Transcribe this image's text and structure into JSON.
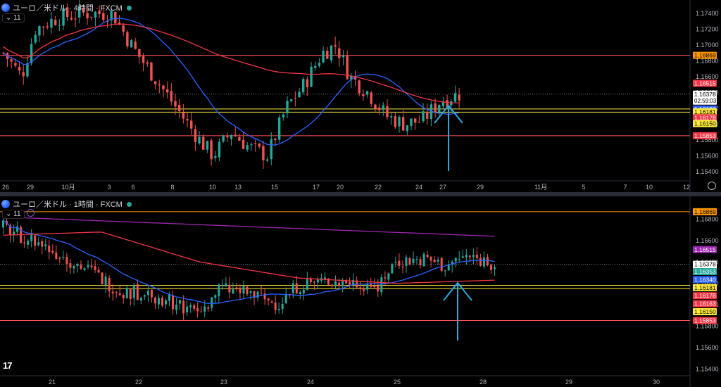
{
  "top": {
    "title": "ユーロ／米ドル · 4時間 · FXCM",
    "ind_toggle": "⌄ 11",
    "ymin": 1.153,
    "ymax": 1.1755,
    "yticks": [
      1.174,
      1.172,
      1.17,
      1.168,
      1.166,
      1.164,
      1.162,
      1.16,
      1.158,
      1.156,
      1.154
    ],
    "xticks": [
      "26",
      "29",
      "10月",
      "3",
      "6",
      "8",
      "10",
      "13",
      "15",
      "17",
      "20",
      "22",
      "24",
      "27",
      "29",
      "11月",
      "5",
      "7",
      "10",
      "12"
    ],
    "hlines": [
      {
        "value": 1.16869,
        "color": "#ff5252"
      },
      {
        "value": 1.1619,
        "color": "#ffeb3b"
      },
      {
        "value": 1.1615,
        "color": "#ffeb3b"
      },
      {
        "value": 1.15853,
        "color": "#ff5252"
      }
    ],
    "price_labels": [
      {
        "text": "1.16869",
        "value": 1.16869,
        "bg": "#ff9800",
        "fg": "#000000"
      },
      {
        "text": "1.16515",
        "value": 1.16515,
        "bg": "#f23645",
        "fg": "#ffffff"
      },
      {
        "text": "1.16378",
        "value": 1.16378,
        "bg": "#ffffff",
        "fg": "#000000",
        "sub": "02:59:03"
      },
      {
        "text": "1.16190",
        "value": 1.1619,
        "bg": "#2962ff",
        "fg": "#ffffff"
      },
      {
        "text": "1.16181",
        "value": 1.16155,
        "bg": "#ffeb3b",
        "fg": "#000000"
      },
      {
        "text": "1.16178",
        "value": 1.1608,
        "bg": "#f23645",
        "fg": "#ffffff"
      },
      {
        "text": "1.16150",
        "value": 1.16005,
        "bg": "#ffeb3b",
        "fg": "#000000"
      },
      {
        "text": "1.15853",
        "value": 1.15853,
        "bg": "#f23645",
        "fg": "#ffffff"
      }
    ]
  },
  "bottom": {
    "title": "ユーロ／米ドル · 1時間 · FXCM",
    "ind_toggle": "⌄ 11",
    "ymin": 1.1535,
    "ymax": 1.17,
    "yticks": [
      1.168,
      1.166,
      1.164,
      1.162,
      1.16,
      1.158,
      1.156,
      1.154
    ],
    "xticks": [
      "21",
      "22",
      "23",
      "24",
      "25",
      "28",
      "29",
      "30"
    ],
    "hlines": [
      {
        "value": 1.16869,
        "color": "#ff9800"
      },
      {
        "value": 1.16181,
        "color": "#ffeb3b"
      },
      {
        "value": 1.1615,
        "color": "#ffeb3b"
      },
      {
        "value": 1.15853,
        "color": "#ff5252"
      }
    ],
    "price_labels": [
      {
        "text": "1.16869",
        "value": 1.16869,
        "bg": "#ff9800",
        "fg": "#000000"
      },
      {
        "text": "1.16515",
        "value": 1.16515,
        "bg": "#9c27b0",
        "fg": "#ffffff"
      },
      {
        "text": "1.16378",
        "value": 1.16378,
        "bg": "#ffffff",
        "fg": "#000000",
        "sub": "59:03"
      },
      {
        "text": "1.16353",
        "value": 1.1631,
        "bg": "#26a69a",
        "fg": "#ffffff"
      },
      {
        "text": "1.16340",
        "value": 1.16235,
        "bg": "#2962ff",
        "fg": "#ffffff"
      },
      {
        "text": "1.16181",
        "value": 1.1616,
        "bg": "#ffeb3b",
        "fg": "#000000"
      },
      {
        "text": "1.16178",
        "value": 1.16085,
        "bg": "#f23645",
        "fg": "#ffffff"
      },
      {
        "text": "1.16163",
        "value": 1.1601,
        "bg": "#f23645",
        "fg": "#ffffff"
      },
      {
        "text": "1.16150",
        "value": 1.15935,
        "bg": "#ffeb3b",
        "fg": "#000000"
      },
      {
        "text": "1.15853",
        "value": 1.15853,
        "bg": "#f23645",
        "fg": "#ffffff"
      }
    ]
  },
  "colors": {
    "up": "#26a69a",
    "down": "#ef5350",
    "sma_fast": "#2962ff",
    "sma_slow": "#f23645",
    "sma_long": "#9c27b0",
    "arrow": "#29a8e0"
  },
  "brand": "17",
  "chart_data": [
    {
      "type": "line",
      "title": "ユーロ／米ドル · 4時間 · FXCM",
      "x": [
        "26",
        "29",
        "10月",
        "3",
        "6",
        "8",
        "10",
        "13",
        "15",
        "17",
        "20",
        "22",
        "24",
        "27"
      ],
      "series": [
        {
          "values": [
            1.17,
            1.1725,
            1.1735,
            1.174,
            1.1705,
            1.165,
            1.158,
            1.16,
            1.157,
            1.169,
            1.164,
            1.16,
            1.162,
            1.1638
          ]
        }
      ],
      "ylim": [
        1.153,
        1.1755
      ]
    },
    {
      "type": "line",
      "title": "ユーロ／米ドル · 1時間 · FXCM",
      "x": [
        "21",
        "22",
        "23",
        "24",
        "25",
        "28"
      ],
      "series": [
        {
          "values": [
            1.1675,
            1.1612,
            1.1595,
            1.1618,
            1.164,
            1.1638
          ]
        }
      ],
      "ylim": [
        1.1535,
        1.17
      ]
    }
  ]
}
